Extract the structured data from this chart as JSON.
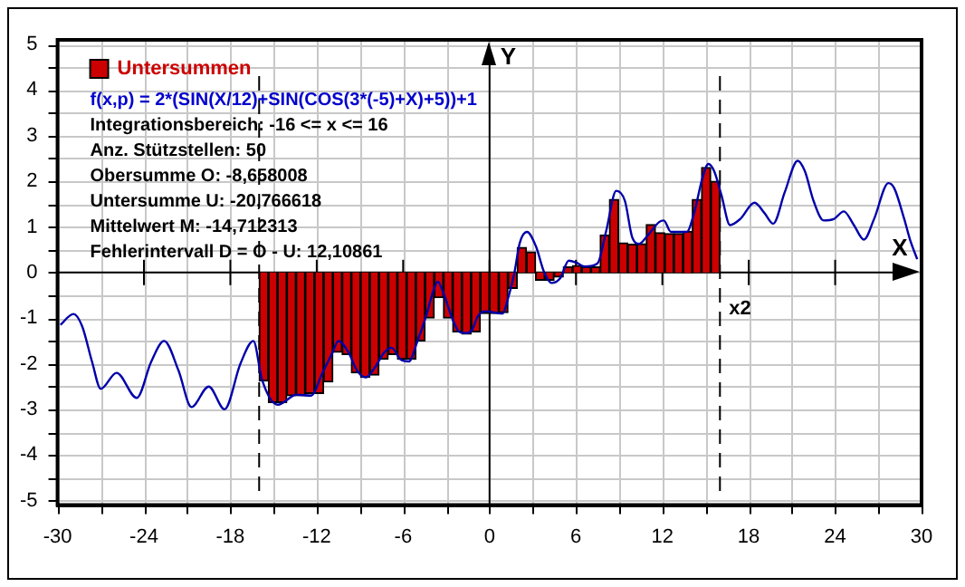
{
  "chart_data": {
    "type": "bar",
    "xlabel": "X",
    "ylabel": "Y",
    "xlim": [
      -30,
      30
    ],
    "ylim": [
      -5.1,
      5.1
    ],
    "xticks": [
      -30,
      {
        "value": -27,
        "label": null
      },
      -24,
      {
        "value": -21,
        "label": null
      },
      -18,
      {
        "value": -15,
        "label": null
      },
      -12,
      {
        "value": -9,
        "label": null
      },
      -6,
      {
        "value": -3,
        "label": null
      },
      0,
      {
        "value": 3,
        "label": null
      },
      6,
      {
        "value": 9,
        "label": null
      },
      12,
      {
        "value": 15,
        "label": null
      },
      18,
      {
        "value": 21,
        "label": null
      },
      24,
      {
        "value": 27,
        "label": null
      },
      30
    ],
    "yticks": [
      -5,
      {
        "value": -4.5,
        "label": null
      },
      -4,
      {
        "value": -3.5,
        "label": null
      },
      -3,
      {
        "value": -2.5,
        "label": null
      },
      -2,
      {
        "value": -1.5,
        "label": null
      },
      -1,
      {
        "value": -0.5,
        "label": null
      },
      0,
      {
        "value": 0.5,
        "label": null
      },
      1,
      {
        "value": 1.5,
        "label": null
      },
      2,
      {
        "value": 2.5,
        "label": null
      },
      3,
      {
        "value": 3.5,
        "label": null
      },
      4,
      {
        "value": 4.5,
        "label": null
      },
      5
    ],
    "grid": true,
    "legend": "top left",
    "marker": "none",
    "series": [
      {
        "name": "Untersummen",
        "color": "#cc0000",
        "x": [
          -15.68,
          -15.04,
          -14.4,
          -13.76,
          -13.12,
          -12.48,
          -11.84,
          -11.2,
          -10.56,
          -9.92,
          -9.28,
          -8.64,
          -8.0,
          -7.36,
          -6.72,
          -6.08,
          -5.44,
          -4.8,
          -4.16,
          -3.52,
          -2.88,
          -2.24,
          -1.6,
          -0.96,
          -0.32,
          0.32,
          0.96,
          1.6,
          2.24,
          2.88,
          3.52,
          4.16,
          4.8,
          5.44,
          6.08,
          6.72,
          7.36,
          8.0,
          8.64,
          9.28,
          9.92,
          10.56,
          11.2,
          11.84,
          12.48,
          13.12,
          13.76,
          14.4,
          15.04,
          15.68
        ],
        "values": [
          -2.38,
          -2.85,
          -2.85,
          -2.7,
          -2.7,
          -2.65,
          -2.65,
          -2.4,
          -1.75,
          -1.8,
          -2.2,
          -2.3,
          -2.25,
          -1.9,
          -1.8,
          -1.9,
          -1.9,
          -1.5,
          -1.0,
          -0.55,
          -1.0,
          -1.3,
          -1.35,
          -1.3,
          -0.9,
          -0.9,
          -0.88,
          -0.35,
          0.55,
          0.45,
          -0.17,
          -0.17,
          -0.1,
          0.12,
          0.15,
          0.12,
          0.12,
          0.82,
          1.6,
          0.65,
          0.62,
          0.63,
          1.05,
          0.87,
          0.85,
          0.85,
          0.9,
          1.6,
          2.3,
          2.0
        ]
      },
      {
        "type": "line",
        "color": "#0000aa",
        "line_style": "solid",
        "x": [
          -29.8,
          -28.9,
          -28.3,
          -27.6,
          -27.0,
          -25.9,
          -24.5,
          -23.5,
          -22.6,
          -21.6,
          -20.7,
          -19.5,
          -18.4,
          -17.3,
          -16.4,
          -15.8,
          -14.7,
          -13.4,
          -12.4,
          -11.6,
          -10.9,
          -10.5,
          -9.8,
          -9.2,
          -8.6,
          -8.0,
          -7.3,
          -6.8,
          -6.2,
          -5.6,
          -5.0,
          -4.4,
          -3.9,
          -3.6,
          -3.2,
          -2.6,
          -2.1,
          -1.6,
          -1.2,
          -0.8,
          -0.3,
          0.4,
          0.9,
          1.3,
          1.7,
          2.1,
          2.6,
          3.2,
          3.8,
          4.3,
          4.9,
          5.5,
          6.0,
          6.6,
          7.5,
          8.1,
          8.8,
          9.4,
          9.9,
          10.4,
          10.9,
          11.8,
          12.1,
          12.6,
          13.7,
          14.2,
          14.8,
          15.2,
          15.6,
          16.1,
          16.7,
          17.4,
          18.4,
          19.1,
          19.7,
          20.5,
          21.4,
          21.9,
          22.5,
          23.2,
          23.9,
          24.6,
          25.3,
          26.0,
          26.7,
          27.7,
          28.1,
          28.8,
          29.2,
          29.7
        ],
        "values": [
          -1.15,
          -0.91,
          -1.17,
          -1.96,
          -2.55,
          -2.2,
          -2.75,
          -1.96,
          -1.5,
          -2.15,
          -2.95,
          -2.5,
          -3.0,
          -2.0,
          -1.5,
          -2.35,
          -2.9,
          -2.68,
          -2.7,
          -2.2,
          -1.75,
          -1.5,
          -1.75,
          -2.15,
          -2.3,
          -2.1,
          -1.75,
          -1.65,
          -1.9,
          -1.95,
          -1.5,
          -0.95,
          -0.4,
          -0.2,
          -0.45,
          -1.0,
          -1.3,
          -1.33,
          -1.25,
          -0.95,
          -0.85,
          -0.88,
          -0.9,
          -0.55,
          -0.05,
          0.65,
          0.89,
          0.59,
          0,
          -0.23,
          -0.13,
          0.26,
          0.22,
          0.13,
          0.2,
          0.91,
          1.79,
          1.57,
          0.78,
          0.63,
          0.78,
          1.11,
          1.14,
          0.89,
          0.89,
          1.3,
          2.09,
          2.38,
          2.22,
          1.7,
          1.04,
          1.17,
          1.53,
          1.3,
          1.07,
          1.76,
          2.45,
          2.22,
          1.57,
          1.14,
          1.17,
          1.34,
          1.04,
          0.72,
          1.17,
          1.96,
          1.85,
          1.17,
          0.72,
          0.29
        ]
      }
    ],
    "ref_lines": [
      {
        "axis": "x",
        "value": -16,
        "line_style": "dashed",
        "color": "#000000"
      },
      {
        "axis": "x",
        "value": 16,
        "line_style": "dashed",
        "color": "#000000"
      }
    ],
    "annotations": [
      "f(x,p) = 2*(SIN(X/12)+SIN(COS(3*(-5)+X)+5))+1",
      "Integrationsbereich: -16 <= x <= 16",
      "Anz. Stützstellen: 50",
      "Obersumme O: -8,658008",
      "Untersumme U: -20,766618",
      "Mittelwert M: -14,712313",
      "Fehlerintervall D = O - U: 12,10861",
      {
        "text": "x2",
        "x": 16,
        "y": 0
      }
    ]
  }
}
